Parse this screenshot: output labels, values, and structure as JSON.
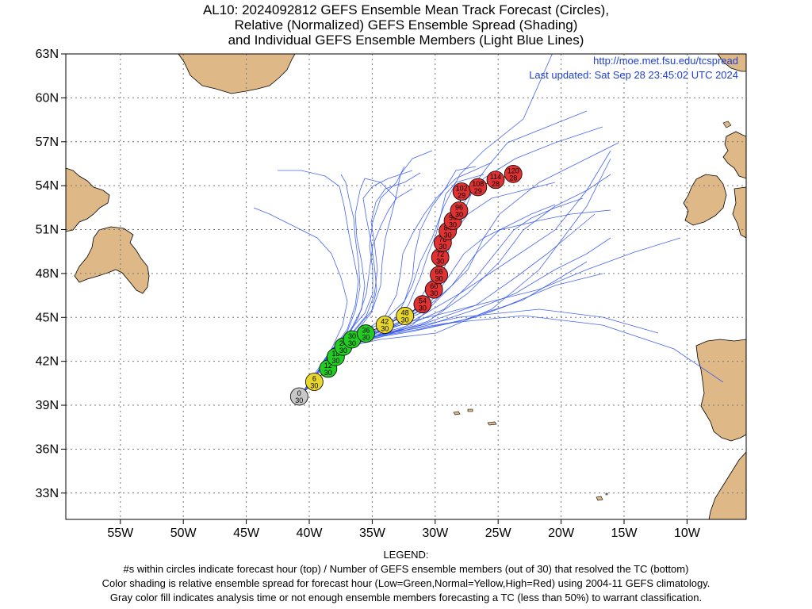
{
  "title": {
    "line1": "AL10: 2024092812 GEFS Ensemble Mean Track Forecast (Circles),",
    "line2": "Relative (Normalized) GEFS Ensemble Spread (Shading)",
    "line3": "and Individual GEFS Ensemble Members (Light Blue Lines)"
  },
  "credits": {
    "url": "http://moe.met.fsu.edu/tcspread",
    "updated": "Last updated: Sat Sep 28 23:45:02 UTC 2024"
  },
  "legend": {
    "heading": "LEGEND:",
    "line1": "#s within circles indicate forecast hour (top) / Number of GEFS ensemble members (out of 30) that resolved the TC (bottom)",
    "line2": "Color shading is relative ensemble spread for forecast hour (Low=Green,Normal=Yellow,High=Red) using 2004-11 GEFS climatology.",
    "line3": "Gray color fill indicates analysis time or not enough ensemble members forecasting a TC (less than 50%) to warrant classification."
  },
  "colors": {
    "gray": "#c8c8c8",
    "green": "#22cc22",
    "yellow": "#e8d62c",
    "red": "#e03232",
    "land": "#deb887",
    "member_line": "#3355ee"
  },
  "map": {
    "lon_ticks": [
      "55W",
      "50W",
      "45W",
      "40W",
      "35W",
      "30W",
      "25W",
      "20W",
      "15W",
      "10W"
    ],
    "lat_ticks": [
      "63N",
      "60N",
      "57N",
      "54N",
      "51N",
      "48N",
      "45N",
      "42N",
      "39N",
      "36N",
      "33N"
    ]
  },
  "mean_track": [
    {
      "lon": -40.8,
      "lat": 39.6,
      "hour": "0",
      "members": "30",
      "spread": "gray"
    },
    {
      "lon": -39.6,
      "lat": 40.6,
      "hour": "6",
      "members": "30",
      "spread": "yellow"
    },
    {
      "lon": -38.5,
      "lat": 41.5,
      "hour": "12",
      "members": "30",
      "spread": "green"
    },
    {
      "lon": -37.9,
      "lat": 42.3,
      "hour": "18",
      "members": "30",
      "spread": "green"
    },
    {
      "lon": -37.3,
      "lat": 43.0,
      "hour": "24",
      "members": "30",
      "spread": "green"
    },
    {
      "lon": -36.6,
      "lat": 43.5,
      "hour": "30",
      "members": "30",
      "spread": "green"
    },
    {
      "lon": -35.5,
      "lat": 43.9,
      "hour": "36",
      "members": "30",
      "spread": "green"
    },
    {
      "lon": -34.0,
      "lat": 44.5,
      "hour": "42",
      "members": "30",
      "spread": "yellow"
    },
    {
      "lon": -32.4,
      "lat": 45.1,
      "hour": "48",
      "members": "30",
      "spread": "yellow"
    },
    {
      "lon": -31.0,
      "lat": 45.9,
      "hour": "54",
      "members": "30",
      "spread": "red"
    },
    {
      "lon": -30.1,
      "lat": 46.9,
      "hour": "60",
      "members": "30",
      "spread": "red"
    },
    {
      "lon": -29.7,
      "lat": 47.9,
      "hour": "66",
      "members": "30",
      "spread": "red"
    },
    {
      "lon": -29.6,
      "lat": 49.1,
      "hour": "72",
      "members": "30",
      "spread": "red"
    },
    {
      "lon": -29.4,
      "lat": 50.1,
      "hour": "78",
      "members": "30",
      "spread": "red"
    },
    {
      "lon": -29.0,
      "lat": 50.9,
      "hour": "84",
      "members": "30",
      "spread": "red"
    },
    {
      "lon": -28.6,
      "lat": 51.6,
      "hour": "90",
      "members": "30",
      "spread": "red"
    },
    {
      "lon": -28.1,
      "lat": 52.3,
      "hour": "96",
      "members": "30",
      "spread": "red"
    },
    {
      "lon": -27.9,
      "lat": 53.6,
      "hour": "102",
      "members": "29",
      "spread": "red"
    },
    {
      "lon": -26.6,
      "lat": 53.9,
      "hour": "108",
      "members": "29",
      "spread": "red"
    },
    {
      "lon": -25.2,
      "lat": 54.4,
      "hour": "114",
      "members": "28",
      "spread": "red"
    },
    {
      "lon": -23.8,
      "lat": 54.8,
      "hour": "120",
      "members": "28",
      "spread": "red"
    }
  ]
}
